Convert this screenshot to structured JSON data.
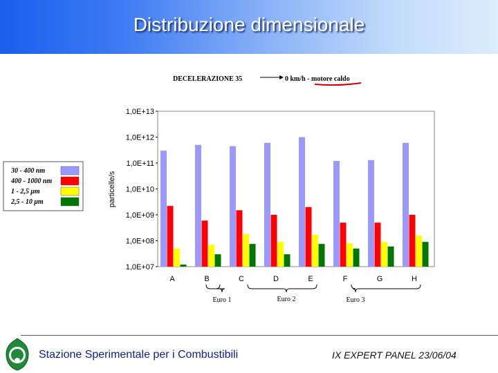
{
  "header": {
    "title": "Distribuzione dimensionale"
  },
  "footer": {
    "left_text": "Stazione Sperimentale per i Combustibili",
    "right_text": "IX EXPERT PANEL 23/06/04"
  },
  "chart_data": {
    "type": "bar",
    "title": "DECELERAZIONE  35",
    "title_right": "0 km/h - motore caldo",
    "ylabel": "particelle/s",
    "xlabel": "",
    "log_scale": true,
    "ylim": [
      10000000.0,
      10000000000000.0
    ],
    "yticks": [
      "1,0E+13",
      "1,0E+12",
      "1,0E+11",
      "1,0E+10",
      "1,0E+09",
      "1,0E+08",
      "1,0E+07"
    ],
    "categories": [
      "A",
      "B",
      "C",
      "D",
      "E",
      "F",
      "G",
      "H"
    ],
    "groups": [
      "Euro 1",
      "Euro 2",
      "Euro 3"
    ],
    "series": [
      {
        "name": "30 - 400 nm",
        "color": "#9999ff",
        "values": [
          300000000000.0,
          500000000000.0,
          450000000000.0,
          600000000000.0,
          1000000000000.0,
          120000000000.0,
          130000000000.0,
          600000000000.0
        ]
      },
      {
        "name": "400 - 1000 nm",
        "color": "#ff0000",
        "values": [
          2200000000.0,
          600000000.0,
          1500000000.0,
          1000000000.0,
          2000000000.0,
          500000000.0,
          500000000.0,
          1000000000.0
        ]
      },
      {
        "name": "1 - 2,5  μm",
        "color": "#ffff00",
        "values": [
          50000000.0,
          70000000.0,
          180000000.0,
          90000000.0,
          170000000.0,
          80000000.0,
          90000000.0,
          160000000.0
        ]
      },
      {
        "name": "2,5 - 10  μm",
        "color": "#007700",
        "values": [
          12000000.0,
          30000000.0,
          75000000.0,
          30000000.0,
          75000000.0,
          50000000.0,
          60000000.0,
          90000000.0
        ]
      }
    ],
    "grid": false,
    "legend_position": "left"
  }
}
